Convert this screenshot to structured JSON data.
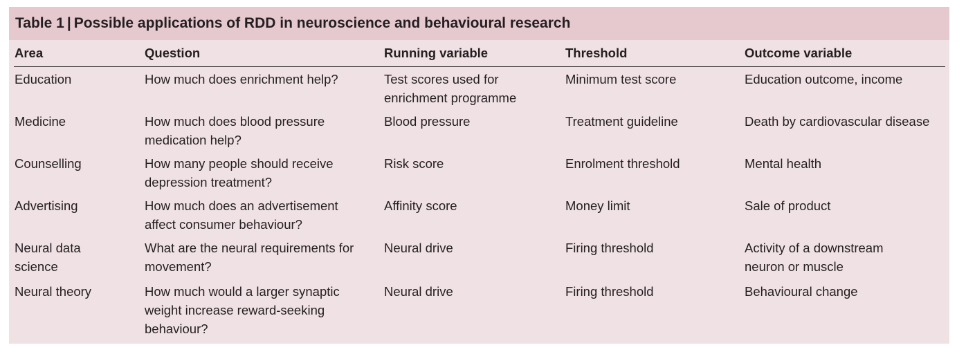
{
  "table": {
    "label": "Table 1",
    "separator": "|",
    "title": "Possible applications of RDD in neuroscience and behavioural research",
    "headers": [
      "Area",
      "Question",
      "Running variable",
      "Threshold",
      "Outcome variable"
    ],
    "rows": [
      {
        "area": [
          "Education"
        ],
        "question": [
          "How much does enrichment help?"
        ],
        "running": [
          "Test scores used for",
          "enrichment programme"
        ],
        "threshold": [
          "Minimum test score"
        ],
        "outcome": [
          "Education outcome, income"
        ]
      },
      {
        "area": [
          "Medicine"
        ],
        "question": [
          "How much does blood pressure",
          "medication help?"
        ],
        "running": [
          "Blood pressure"
        ],
        "threshold": [
          "Treatment guideline"
        ],
        "outcome": [
          "Death by cardiovascular disease"
        ]
      },
      {
        "area": [
          "Counselling"
        ],
        "question": [
          "How many people should receive",
          "depression treatment?"
        ],
        "running": [
          "Risk score"
        ],
        "threshold": [
          "Enrolment threshold"
        ],
        "outcome": [
          "Mental health"
        ]
      },
      {
        "area": [
          "Advertising"
        ],
        "question": [
          "How much does an advertisement",
          "affect consumer behaviour?"
        ],
        "running": [
          "Affinity score"
        ],
        "threshold": [
          "Money limit"
        ],
        "outcome": [
          "Sale of product"
        ]
      },
      {
        "area": [
          "Neural data",
          "science"
        ],
        "question": [
          "What are the neural requirements for",
          "movement?"
        ],
        "running": [
          "Neural drive"
        ],
        "threshold": [
          "Firing threshold"
        ],
        "outcome": [
          "Activity of a downstream",
          "neuron or muscle"
        ]
      },
      {
        "area": [
          "Neural theory"
        ],
        "question": [
          "How much would a larger synaptic",
          "weight increase reward-seeking",
          "behaviour?"
        ],
        "running": [
          "Neural drive"
        ],
        "threshold": [
          "Firing threshold"
        ],
        "outcome": [
          "Behavioural change"
        ]
      }
    ]
  }
}
